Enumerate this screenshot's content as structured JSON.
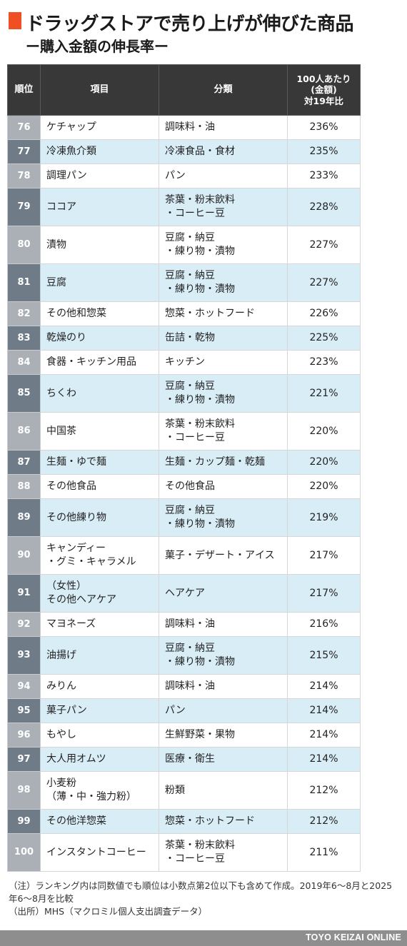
{
  "title": "ドラッグストアで売り上げが伸びた商品",
  "subtitle": "ー購入金額の伸長率ー",
  "accent_color": "#f04e23",
  "table": {
    "headers": {
      "rank": "順位",
      "item": "項目",
      "category": "分類",
      "rate": "100人あたり\n(金額)\n対19年比"
    },
    "rows": [
      {
        "rank": "76",
        "item": "ケチャップ",
        "category": "調味料・油",
        "rate": "236%"
      },
      {
        "rank": "77",
        "item": "冷凍魚介類",
        "category": "冷凍食品・食材",
        "rate": "235%"
      },
      {
        "rank": "78",
        "item": "調理パン",
        "category": "パン",
        "rate": "233%"
      },
      {
        "rank": "79",
        "item": "ココア",
        "category": "茶葉・粉末飲料\n・コーヒー豆",
        "rate": "228%"
      },
      {
        "rank": "80",
        "item": "漬物",
        "category": "豆腐・納豆\n・練り物・漬物",
        "rate": "227%"
      },
      {
        "rank": "81",
        "item": "豆腐",
        "category": "豆腐・納豆\n・練り物・漬物",
        "rate": "227%"
      },
      {
        "rank": "82",
        "item": "その他和惣菜",
        "category": "惣菜・ホットフード",
        "rate": "226%"
      },
      {
        "rank": "83",
        "item": "乾燥のり",
        "category": "缶詰・乾物",
        "rate": "225%"
      },
      {
        "rank": "84",
        "item": "食器・キッチン用品",
        "category": "キッチン",
        "rate": "223%"
      },
      {
        "rank": "85",
        "item": "ちくわ",
        "category": "豆腐・納豆\n・練り物・漬物",
        "rate": "221%"
      },
      {
        "rank": "86",
        "item": "中国茶",
        "category": "茶葉・粉末飲料\n・コーヒー豆",
        "rate": "220%"
      },
      {
        "rank": "87",
        "item": "生麺・ゆで麺",
        "category": "生麺・カップ麺・乾麺",
        "rate": "220%"
      },
      {
        "rank": "88",
        "item": "その他食品",
        "category": "その他食品",
        "rate": "220%"
      },
      {
        "rank": "89",
        "item": "その他練り物",
        "category": "豆腐・納豆\n・練り物・漬物",
        "rate": "219%"
      },
      {
        "rank": "90",
        "item": "キャンディー\n・グミ・キャラメル",
        "category": "菓子・デザート・アイス",
        "rate": "217%"
      },
      {
        "rank": "91",
        "item": "（女性）\nその他ヘアケア",
        "category": "ヘアケア",
        "rate": "217%"
      },
      {
        "rank": "92",
        "item": "マヨネーズ",
        "category": "調味料・油",
        "rate": "216%"
      },
      {
        "rank": "93",
        "item": "油揚げ",
        "category": "豆腐・納豆\n・練り物・漬物",
        "rate": "215%"
      },
      {
        "rank": "94",
        "item": "みりん",
        "category": "調味料・油",
        "rate": "214%"
      },
      {
        "rank": "95",
        "item": "菓子パン",
        "category": "パン",
        "rate": "214%"
      },
      {
        "rank": "96",
        "item": "もやし",
        "category": "生鮮野菜・果物",
        "rate": "214%"
      },
      {
        "rank": "97",
        "item": "大人用オムツ",
        "category": "医療・衛生",
        "rate": "214%"
      },
      {
        "rank": "98",
        "item": "小麦粉\n（薄・中・強力粉）",
        "category": "粉類",
        "rate": "212%"
      },
      {
        "rank": "99",
        "item": "その他洋惣菜",
        "category": "惣菜・ホットフード",
        "rate": "212%"
      },
      {
        "rank": "100",
        "item": "インスタントコーヒー",
        "category": "茶葉・粉末飲料\n・コーヒー豆",
        "rate": "211%"
      }
    ]
  },
  "notes": [
    "（注）ランキング内は同数値でも順位は小数点第2位以下も含めて作成。2019年6〜8月と2025年6〜8月を比較",
    "（出所）MHS（マクロミル個人支出調査データ）"
  ],
  "footer": {
    "brand": "TOYO KEIZAI ONLINE"
  }
}
